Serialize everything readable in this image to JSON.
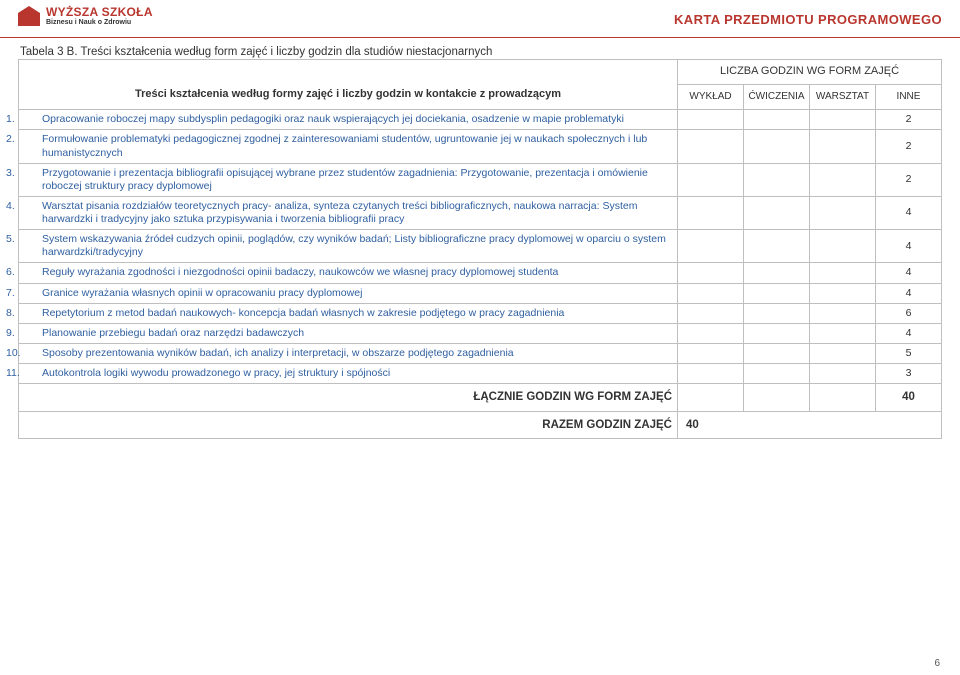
{
  "header": {
    "logo_main": "WYŻSZA SZKOŁA",
    "logo_sub": "Biznesu i Nauk o Zdrowiu",
    "karta_title": "KARTA PRZEDMIOTU PROGRAMOWEGO"
  },
  "caption": "Tabela 3 B. Treści kształcenia według form zajęć i liczby godzin dla studiów niestacjonarnych",
  "columns": {
    "group_header": "LICZBA GODZIN WG FORM ZAJĘĆ",
    "left_label": "Treści kształcenia według formy zajęć i liczby godzin w kontakcie z prowadzącym",
    "c1": "WYKŁAD",
    "c2": "ĆWICZENIA",
    "c3": "WARSZTAT",
    "c4": "INNE"
  },
  "rows": [
    {
      "n": "1.",
      "text": "Opracowanie roboczej mapy subdysplin pedagogiki oraz nauk wspierających jej dociekania, osadzenie w mapie problematyki",
      "inne": "2"
    },
    {
      "n": "2.",
      "text": "Formułowanie problematyki pedagogicznej zgodnej z zainteresowaniami studentów, ugruntowanie jej w naukach społecznych i lub humanistycznych",
      "inne": "2"
    },
    {
      "n": "3.",
      "text": "Przygotowanie i prezentacja bibliografii opisującej wybrane przez studentów zagadnienia: Przygotowanie, prezentacja i omówienie roboczej struktury pracy dyplomowej",
      "inne": "2"
    },
    {
      "n": "4.",
      "text": "Warsztat pisania rozdziałów teoretycznych pracy- analiza, synteza czytanych treści bibliograficznych, naukowa narracja: System harwardzki i tradycyjny jako sztuka przypisywania i tworzenia bibliografii pracy",
      "inne": "4"
    },
    {
      "n": "5.",
      "text": "System wskazywania źródeł cudzych opinii, poglądów, czy wyników badań; Listy bibliograficzne pracy dyplomowej  w oparciu o system harwardzki/tradycyjny",
      "inne": "4"
    },
    {
      "n": "6.",
      "text": "Reguły wyrażania zgodności i niezgodności opinii badaczy, naukowców we własnej pracy dyplomowej studenta",
      "inne": "4"
    },
    {
      "n": "7.",
      "text": "Granice wyrażania własnych opinii w opracowaniu pracy dyplomowej",
      "inne": "4"
    },
    {
      "n": "8.",
      "text": "Repetytorium z metod badań naukowych- koncepcja badań własnych w zakresie podjętego w pracy zagadnienia",
      "inne": "6"
    },
    {
      "n": "9.",
      "text": "Planowanie przebiegu badań oraz narzędzi badawczych",
      "inne": "4"
    },
    {
      "n": "10.",
      "text": "Sposoby prezentowania wyników badań, ich analizy i interpretacji, w obszarze podjętego zagadnienia",
      "inne": "5"
    },
    {
      "n": "11.",
      "text": "Autokontrola logiki wywodu prowadzonego w pracy, jej struktury i spójności",
      "inne": "3"
    }
  ],
  "totals": {
    "label_forms": "ŁĄCZNIE GODZIN WG FORM ZAJĘĆ",
    "total_forms": "40",
    "label_all": "RAZEM GODZIN ZAJĘĆ",
    "total_all": "40"
  },
  "page_number": "6",
  "colors": {
    "accent": "#b9362f",
    "link": "#2f5fa0",
    "border": "#bfbfbf"
  }
}
